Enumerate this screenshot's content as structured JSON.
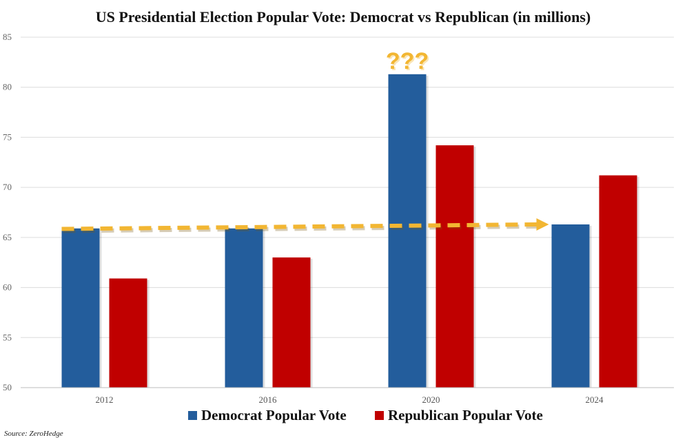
{
  "chart_data": {
    "type": "bar",
    "title": "US Presidential Election Popular Vote: Democrat vs Republican (in millions)",
    "categories": [
      "2012",
      "2016",
      "2020",
      "2024"
    ],
    "series": [
      {
        "name": "Democrat Popular Vote",
        "color": "#235d9c",
        "values": [
          65.9,
          65.9,
          81.3,
          66.3
        ]
      },
      {
        "name": "Republican Popular Vote",
        "color": "#c00000",
        "values": [
          60.9,
          63.0,
          74.2,
          71.2
        ]
      }
    ],
    "ylim": [
      50,
      85
    ],
    "yticks": [
      "50",
      "55",
      "60",
      "65",
      "70",
      "75",
      "80",
      "85"
    ],
    "grid": true,
    "legend_position": "bottom",
    "annotations": {
      "question_marks": "???",
      "question_marks_category": "2020",
      "arrow_color": "#f2b632",
      "arrow_from": {
        "category": "2012",
        "value": 65.85
      },
      "arrow_to": {
        "category": "2024",
        "value": 66.3
      }
    },
    "source": "Source: ZeroHedge"
  }
}
